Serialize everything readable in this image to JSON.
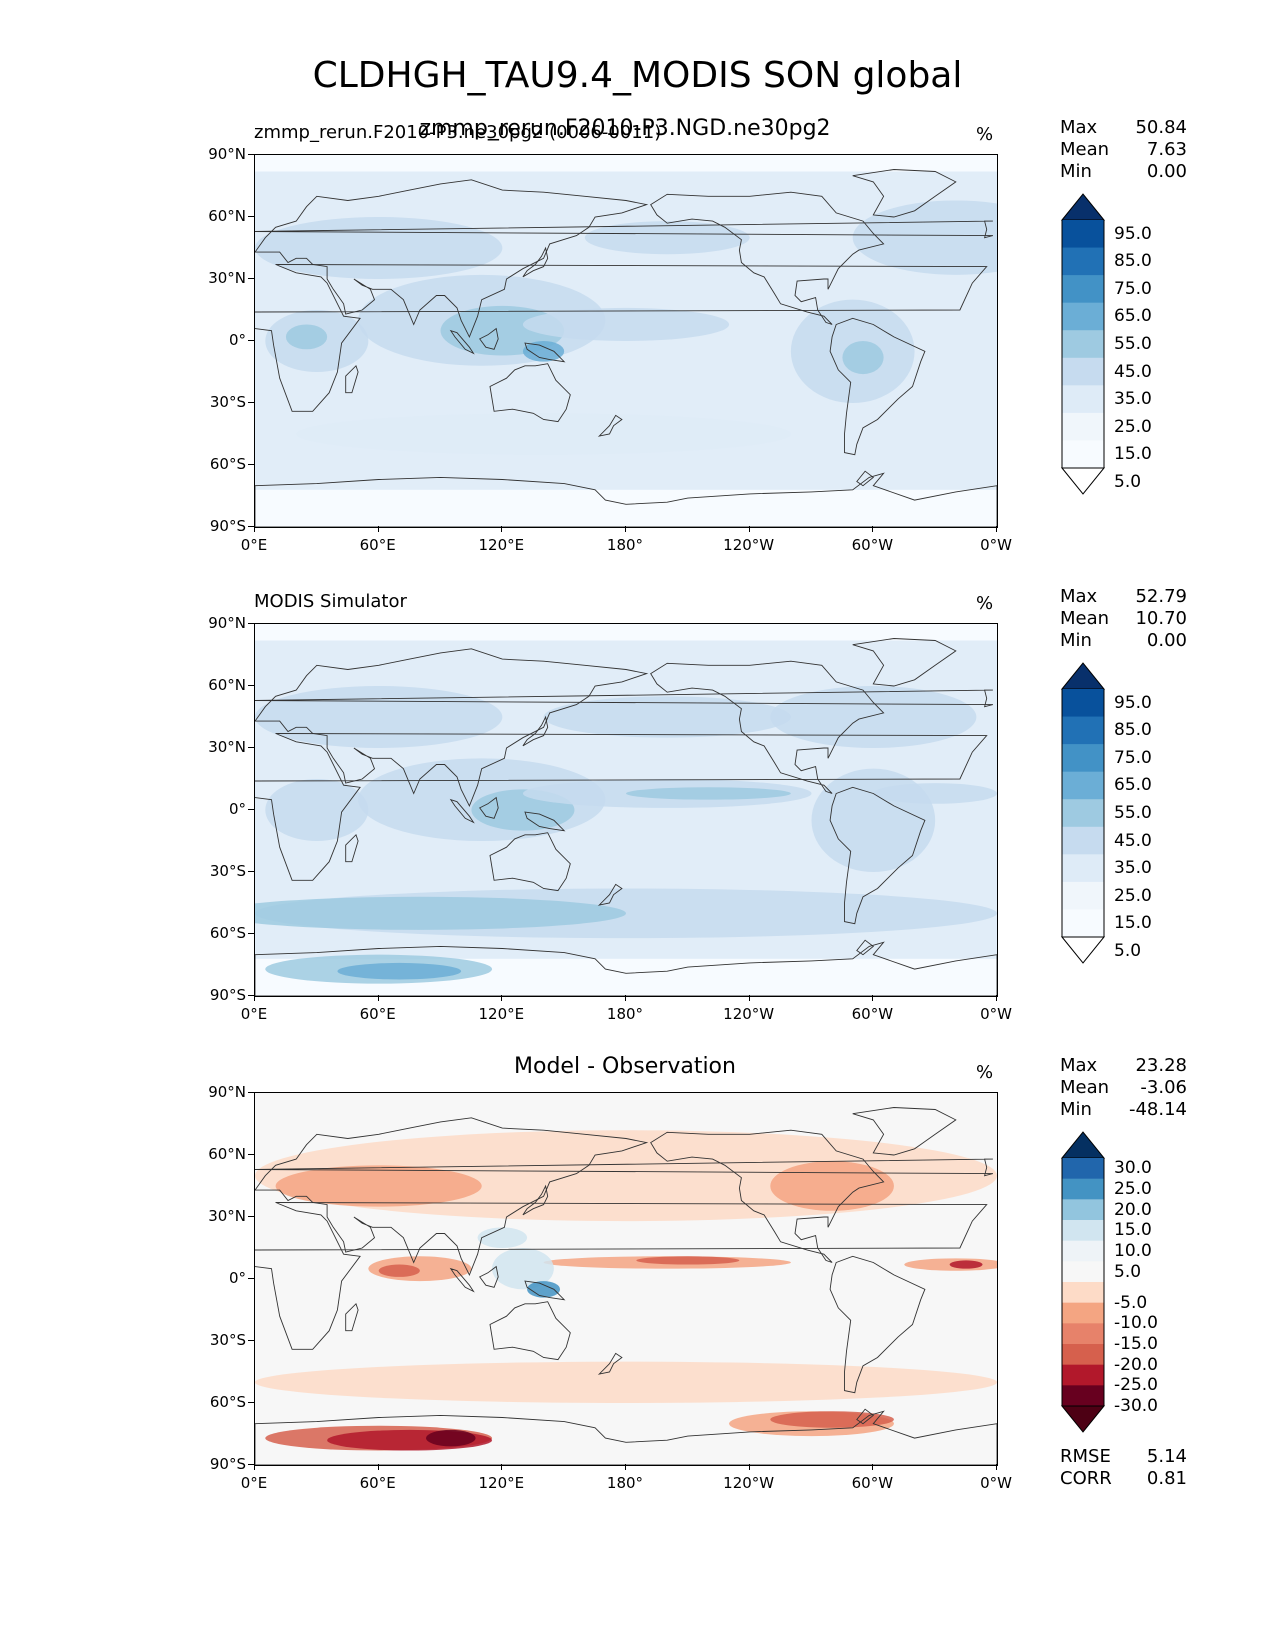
{
  "figure": {
    "title": "CLDHGH_TAU9.4_MODIS SON global"
  },
  "colors": {
    "blues": [
      "#f7fbff",
      "#deebf7",
      "#c6dbef",
      "#9ecae1",
      "#6baed6",
      "#4292c6",
      "#2171b5",
      "#08519c",
      "#08306b"
    ],
    "diff_neg": [
      "#67001f",
      "#b2182b",
      "#d6604d",
      "#f4a582",
      "#fddbc7"
    ],
    "diff_pos": [
      "#d1e5f0",
      "#92c5de",
      "#4393c3",
      "#2166ac",
      "#053061"
    ],
    "neutral": "#f7f7f7",
    "land_outline": "#333333"
  },
  "axes": {
    "y_tick_labels": [
      "90°N",
      "60°N",
      "30°N",
      "0°",
      "30°S",
      "60°S",
      "90°S"
    ],
    "x_tick_labels": [
      "0°E",
      "60°E",
      "120°E",
      "180°",
      "120°W",
      "60°W",
      "0°W"
    ]
  },
  "panels": [
    {
      "left_title": "zmmp_rerun.F2010-P3.ne30pg2 (0006-0011)",
      "center_title": "zmmp_rerun.F2010-P3.NGD.ne30pg2",
      "units": "%",
      "stats": [
        {
          "label": "Max",
          "value": "50.84"
        },
        {
          "label": "Mean",
          "value": "7.63"
        },
        {
          "label": "Min",
          "value": "0.00"
        }
      ],
      "colorbar_labels": [
        "95.0",
        "85.0",
        "75.0",
        "65.0",
        "55.0",
        "45.0",
        "35.0",
        "25.0",
        "15.0",
        "5.0"
      ]
    },
    {
      "left_title": "MODIS Simulator",
      "center_title": "",
      "units": "%",
      "stats": [
        {
          "label": "Max",
          "value": "52.79"
        },
        {
          "label": "Mean",
          "value": "10.70"
        },
        {
          "label": "Min",
          "value": "0.00"
        }
      ],
      "colorbar_labels": [
        "95.0",
        "85.0",
        "75.0",
        "65.0",
        "55.0",
        "45.0",
        "35.0",
        "25.0",
        "15.0",
        "5.0"
      ]
    },
    {
      "left_title": "",
      "center_title": "Model - Observation",
      "units": "%",
      "stats": [
        {
          "label": "Max",
          "value": "23.28"
        },
        {
          "label": "Mean",
          "value": "-3.06"
        },
        {
          "label": "Min",
          "value": "-48.14"
        }
      ],
      "colorbar_labels": [
        "30.0",
        "25.0",
        "20.0",
        "15.0",
        "10.0",
        "5.0",
        "-5.0",
        "-10.0",
        "-15.0",
        "-20.0",
        "-25.0",
        "-30.0"
      ],
      "rmse": {
        "label": "RMSE",
        "value": "5.14"
      },
      "corr": {
        "label": "CORR",
        "value": "0.81"
      }
    }
  ],
  "chart_data": [
    {
      "type": "heatmap",
      "title": "zmmp_rerun.F2010-P3.NGD.ne30pg2",
      "variable": "CLDHGH_TAU9.4_MODIS",
      "season": "SON",
      "units": "%",
      "x": [
        "0°E",
        "60°E",
        "120°E",
        "180°",
        "120°W",
        "60°W",
        "0°W"
      ],
      "y": [
        "90°N",
        "60°N",
        "30°N",
        "0°",
        "30°S",
        "60°S",
        "90°S"
      ],
      "levels": [
        0,
        5,
        15,
        25,
        35,
        45,
        55,
        65,
        75,
        85,
        95
      ],
      "max": 50.84,
      "mean": 7.63,
      "min": 0.0,
      "grid": false
    },
    {
      "type": "heatmap",
      "title": "MODIS Simulator",
      "units": "%",
      "x": [
        "0°E",
        "60°E",
        "120°E",
        "180°",
        "120°W",
        "60°W",
        "0°W"
      ],
      "y": [
        "90°N",
        "60°N",
        "30°N",
        "0°",
        "30°S",
        "60°S",
        "90°S"
      ],
      "levels": [
        0,
        5,
        15,
        25,
        35,
        45,
        55,
        65,
        75,
        85,
        95
      ],
      "max": 52.79,
      "mean": 10.7,
      "min": 0.0,
      "grid": false
    },
    {
      "type": "heatmap",
      "title": "Model - Observation",
      "units": "%",
      "x": [
        "0°E",
        "60°E",
        "120°E",
        "180°",
        "120°W",
        "60°W",
        "0°W"
      ],
      "y": [
        "90°N",
        "60°N",
        "30°N",
        "0°",
        "30°S",
        "60°S",
        "90°S"
      ],
      "levels": [
        -30,
        -25,
        -20,
        -15,
        -10,
        -5,
        5,
        10,
        15,
        20,
        25,
        30
      ],
      "max": 23.28,
      "mean": -3.06,
      "min": -48.14,
      "rmse": 5.14,
      "corr": 0.81,
      "grid": false
    }
  ]
}
